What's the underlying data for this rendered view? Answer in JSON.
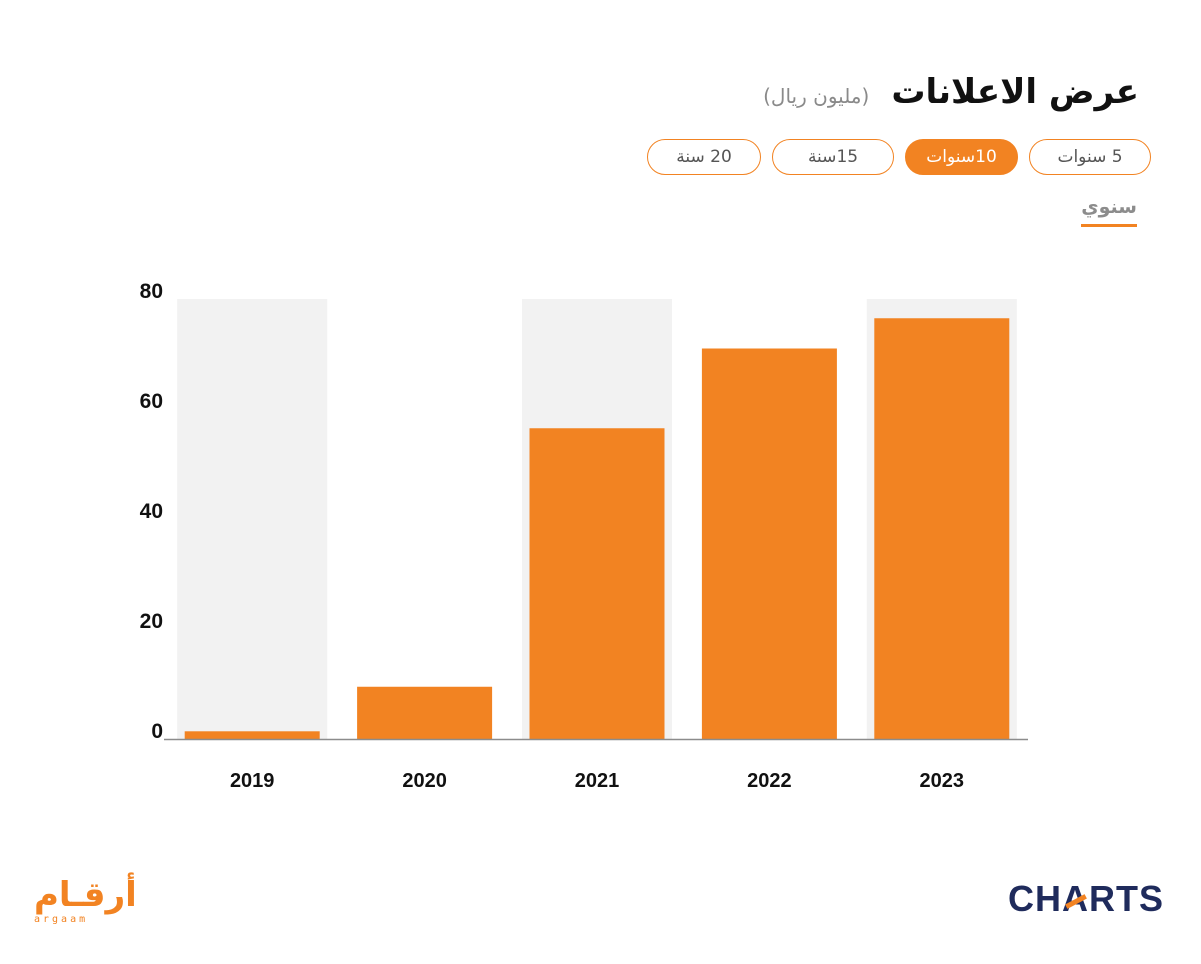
{
  "header": {
    "title": "عرض الاعلانات",
    "unit": "(مليون ريال)"
  },
  "period_tabs": [
    {
      "label": "5 سنوات",
      "active": false
    },
    {
      "label": "10سنوات",
      "active": true
    },
    {
      "label": "15سنة",
      "active": false
    },
    {
      "label": "20 سنة",
      "active": false
    }
  ],
  "frequency_tab": {
    "label": "سنوي",
    "active": true
  },
  "colors": {
    "accent": "#f28322",
    "band": "#f2f2f2",
    "axis": "#8c8c8c",
    "charts_logo": "#1f2b5c"
  },
  "chart_data": {
    "type": "bar",
    "title": "عرض الاعلانات",
    "xlabel": "",
    "ylabel": "",
    "categories": [
      "2019",
      "2020",
      "2021",
      "2022",
      "2023"
    ],
    "values": [
      1.4,
      9.5,
      56.5,
      71,
      76.5
    ],
    "ylim": [
      0,
      80
    ],
    "yticks": [
      0,
      20,
      40,
      60,
      80
    ],
    "alternating_bands": true,
    "grid": false,
    "legend": "none"
  },
  "logos": {
    "argaam_ar": "أرقـام",
    "argaam_en": "argaam",
    "charts": "CHARTS"
  }
}
